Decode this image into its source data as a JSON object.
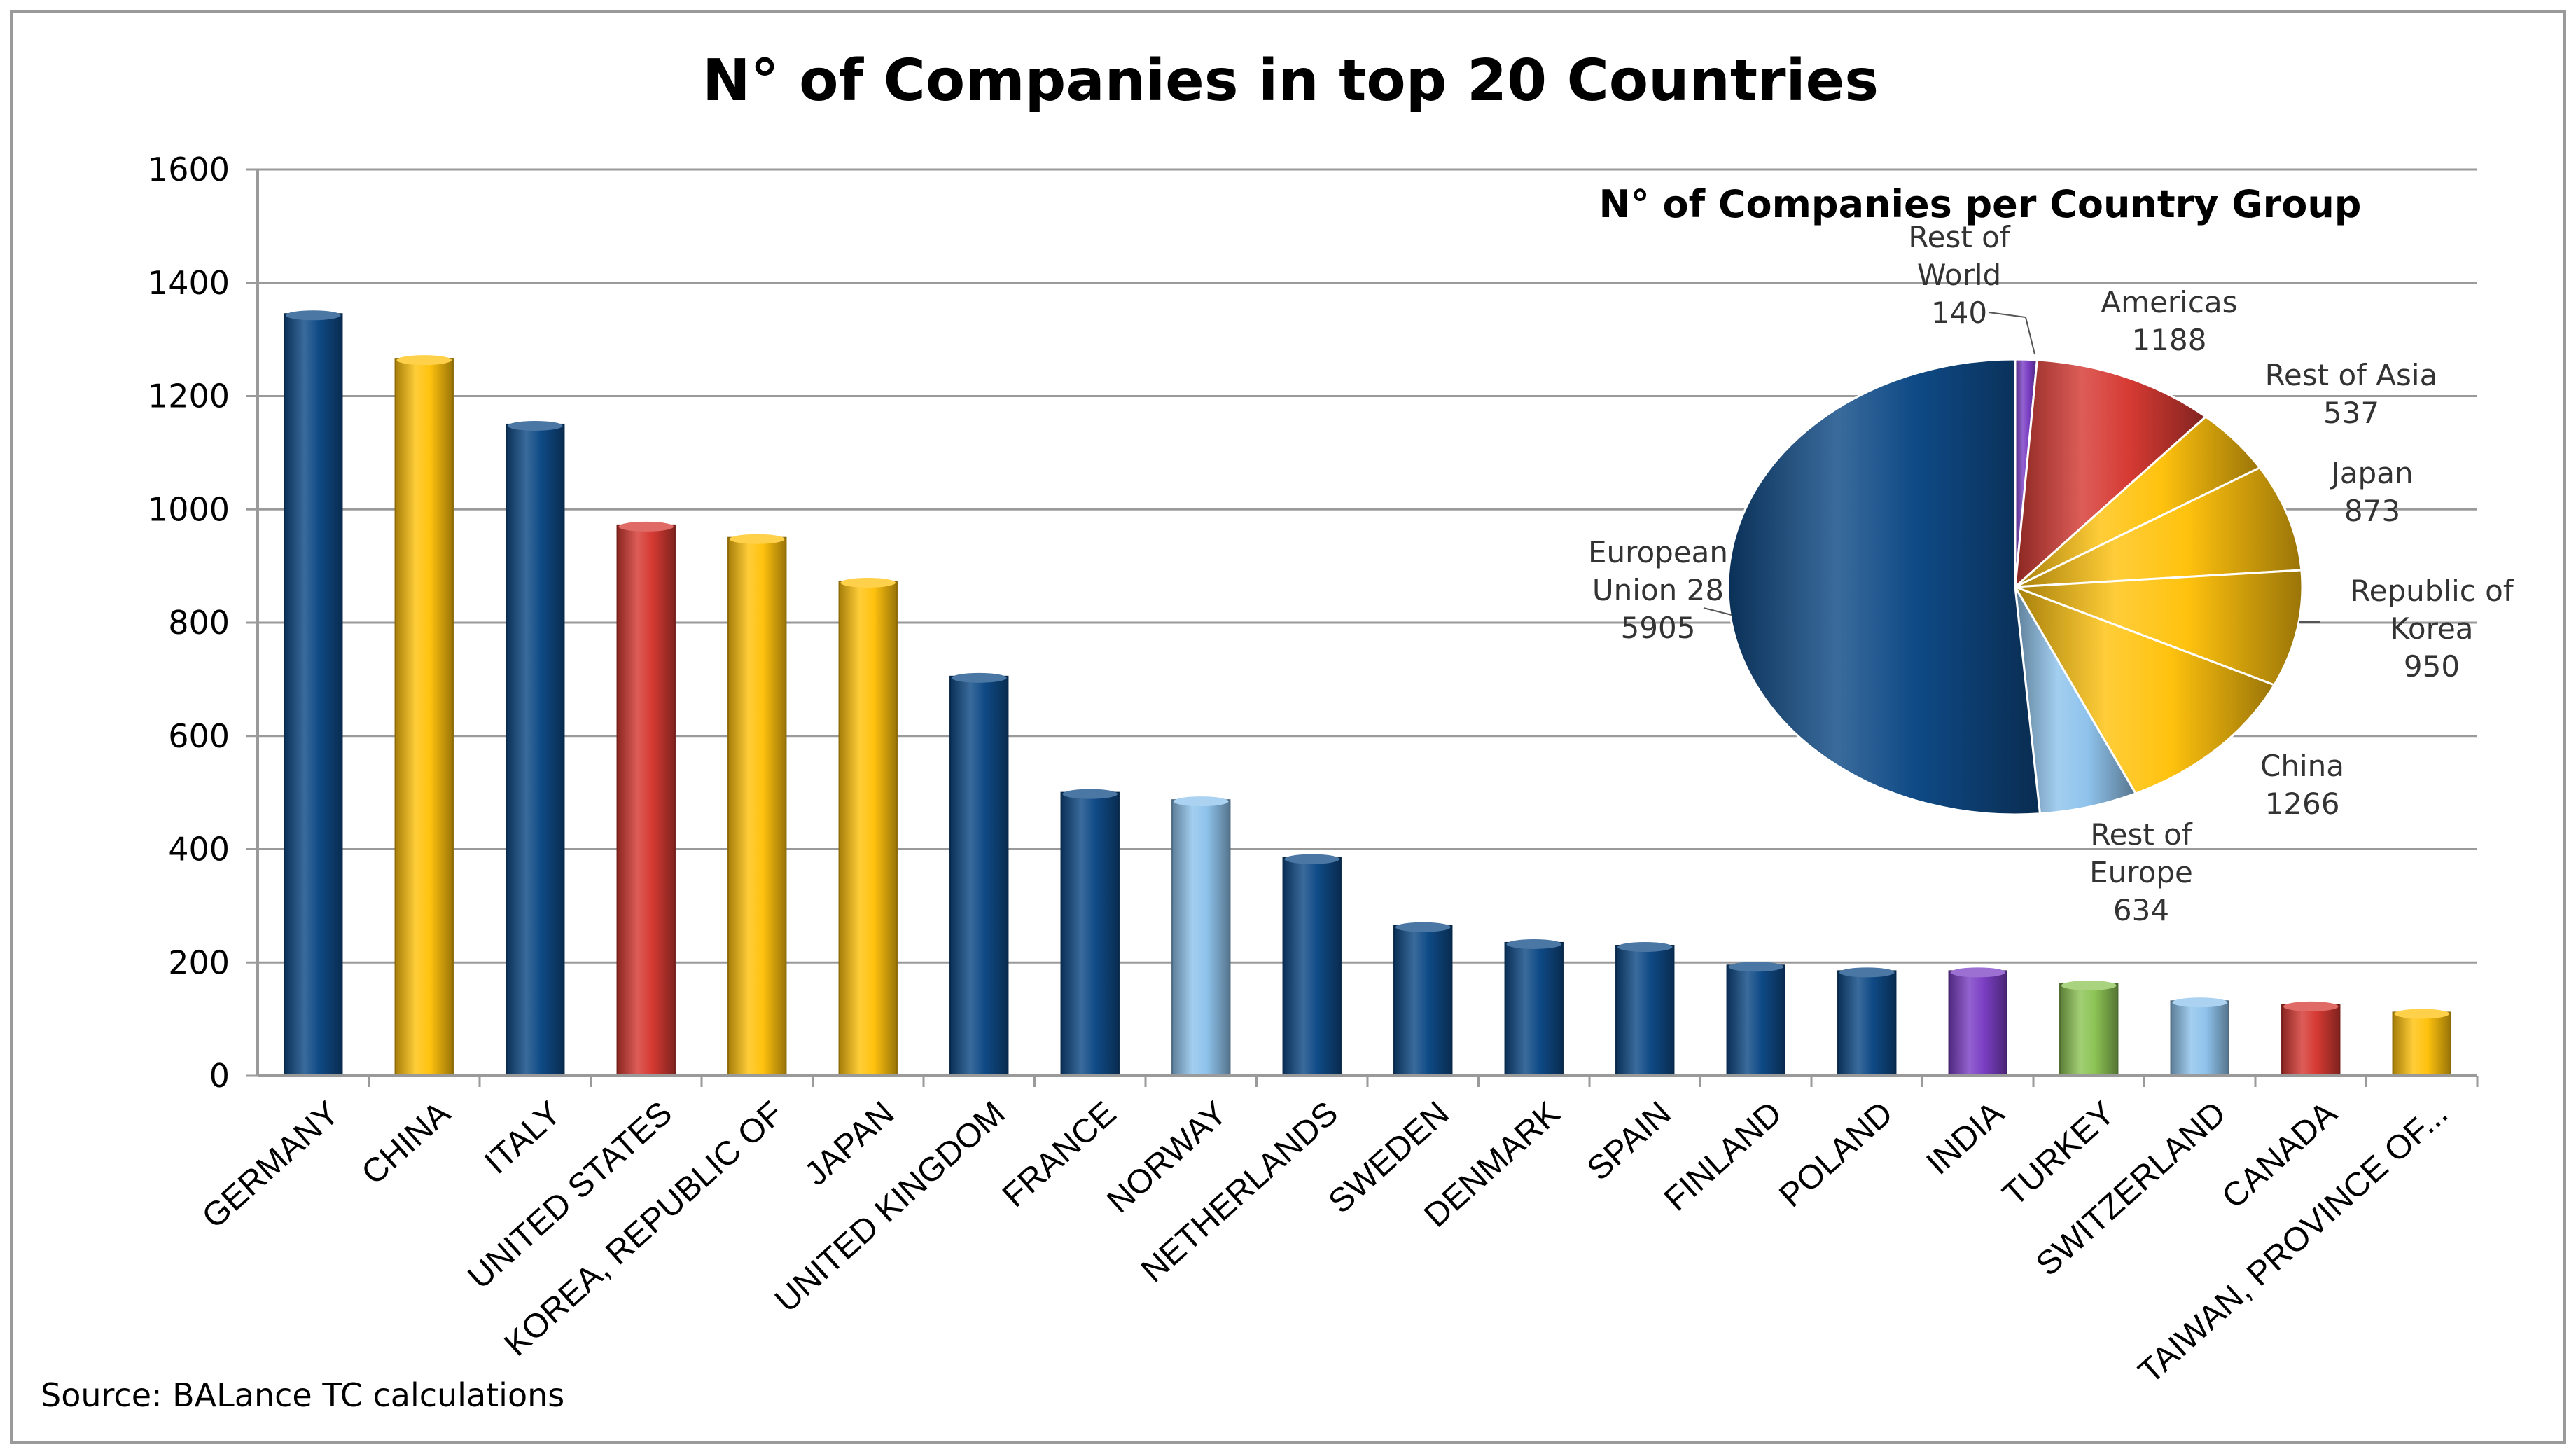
{
  "chart_data": [
    {
      "type": "bar",
      "title": "N° of Companies in top 20 Countries",
      "xlabel": "",
      "ylabel": "",
      "ylim": [
        0,
        1600
      ],
      "y_ticks": [
        "0",
        "200",
        "400",
        "600",
        "800",
        "1000",
        "1200",
        "1400",
        "1600"
      ],
      "grid": true,
      "categories": [
        "GERMANY",
        "CHINA",
        "ITALY",
        "UNITED STATES",
        "KOREA, REPUBLIC OF",
        "JAPAN",
        "UNITED KINGDOM",
        "FRANCE",
        "NORWAY",
        "NETHERLANDS",
        "SWEDEN",
        "DENMARK",
        "SPAIN",
        "FINLAND",
        "POLAND",
        "INDIA",
        "TURKEY",
        "SWITZERLAND",
        "CANADA",
        "TAIWAN, PROVINCE OF..."
      ],
      "values": [
        1345,
        1266,
        1150,
        972,
        950,
        873,
        705,
        500,
        487,
        385,
        265,
        235,
        230,
        195,
        185,
        185,
        162,
        132,
        125,
        112
      ],
      "bar_groups": [
        "eu",
        "china",
        "eu",
        "americas",
        "asia",
        "asia",
        "eu",
        "eu",
        "europe",
        "eu",
        "eu",
        "eu",
        "eu",
        "eu",
        "eu",
        "india",
        "turkey",
        "europe",
        "americas",
        "asia"
      ]
    },
    {
      "type": "pie",
      "title": "N° of Companies per Country Group",
      "slices": [
        {
          "name": "Rest of World",
          "value": 140,
          "group": "world",
          "label_lines": [
            "Rest of",
            "World",
            "140"
          ]
        },
        {
          "name": "Americas",
          "value": 1188,
          "group": "americas",
          "label_lines": [
            "Americas",
            "1188"
          ]
        },
        {
          "name": "Rest of Asia",
          "value": 537,
          "group": "asia",
          "label_lines": [
            "Rest of Asia",
            "537"
          ]
        },
        {
          "name": "Japan",
          "value": 873,
          "group": "asia",
          "label_lines": [
            "Japan",
            "873"
          ]
        },
        {
          "name": "Republic of Korea",
          "value": 950,
          "group": "asia",
          "label_lines": [
            "Republic of",
            "Korea",
            "950"
          ]
        },
        {
          "name": "China",
          "value": 1266,
          "group": "china",
          "label_lines": [
            "China",
            "1266"
          ]
        },
        {
          "name": "Rest of Europe",
          "value": 634,
          "group": "europe",
          "label_lines": [
            "Rest of",
            "Europe",
            "634"
          ]
        },
        {
          "name": "European Union 28",
          "value": 5905,
          "group": "eu",
          "label_lines": [
            "European",
            "Union 28",
            "5905"
          ]
        }
      ]
    }
  ],
  "colors": {
    "eu": "#0f4a86",
    "china": "#ffc20e",
    "asia": "#ffc20e",
    "americas": "#d63a33",
    "europe": "#8fc3ec",
    "india": "#7b3fc4",
    "turkey": "#8dc455",
    "world": "#7b3fc4",
    "grid": "#9a9a9a",
    "text": "#000000"
  },
  "source": "Source: BALance TC calculations"
}
